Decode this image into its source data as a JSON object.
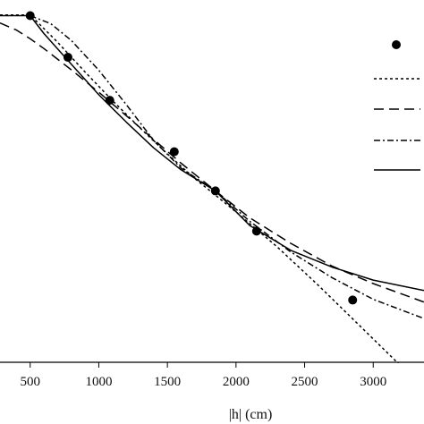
{
  "chart_data": {
    "type": "line",
    "title": "",
    "xlabel": "|h| (cm)",
    "ylabel": "",
    "xlim": [
      280,
      3370
    ],
    "ylim": [
      0,
      1
    ],
    "x_ticks": [
      500,
      1000,
      1500,
      2000,
      2500,
      3000
    ],
    "x_tick_labels": [
      "500",
      "1000",
      "1500",
      "2000",
      "2500",
      "3000"
    ],
    "grid": false,
    "legend_position": "top-right",
    "series": [
      {
        "style": "markers",
        "color": "#000000",
        "x": [
          500,
          775,
          1080,
          1550,
          1850,
          2150,
          2850
        ],
        "y": [
          0.991,
          0.872,
          0.749,
          0.602,
          0.49,
          0.375,
          0.178
        ]
      },
      {
        "style": "dotted",
        "color": "#000000",
        "x": [
          280,
          500,
          700,
          900,
          1100,
          1300,
          1500,
          1700,
          1850,
          2000,
          2300,
          2600,
          2900,
          3200
        ],
        "y": [
          0.993,
          0.993,
          0.915,
          0.83,
          0.748,
          0.67,
          0.596,
          0.525,
          0.478,
          0.43,
          0.33,
          0.22,
          0.105,
          -0.01
        ]
      },
      {
        "style": "dashed",
        "color": "#000000",
        "x": [
          280,
          400,
          500,
          600,
          800,
          1000,
          1200,
          1400,
          1600,
          1850,
          2100,
          2400,
          2700,
          3000,
          3370
        ],
        "y": [
          0.97,
          0.95,
          0.925,
          0.897,
          0.836,
          0.772,
          0.705,
          0.637,
          0.569,
          0.49,
          0.413,
          0.34,
          0.275,
          0.225,
          0.172
        ]
      },
      {
        "style": "dash-dot",
        "color": "#000000",
        "x": [
          500,
          650,
          800,
          1000,
          1200,
          1400,
          1600,
          1850,
          2100,
          2400,
          2700,
          3000,
          3370
        ],
        "y": [
          0.991,
          0.968,
          0.92,
          0.835,
          0.737,
          0.634,
          0.555,
          0.49,
          0.403,
          0.315,
          0.242,
          0.18,
          0.125
        ]
      },
      {
        "style": "solid",
        "color": "#000000",
        "x": [
          280,
          500,
          600,
          800,
          1000,
          1200,
          1400,
          1600,
          1850,
          2100,
          2400,
          2700,
          3000,
          3370
        ],
        "y": [
          0.991,
          0.991,
          0.94,
          0.852,
          0.765,
          0.687,
          0.613,
          0.55,
          0.49,
          0.391,
          0.32,
          0.272,
          0.235,
          0.205
        ]
      }
    ]
  }
}
